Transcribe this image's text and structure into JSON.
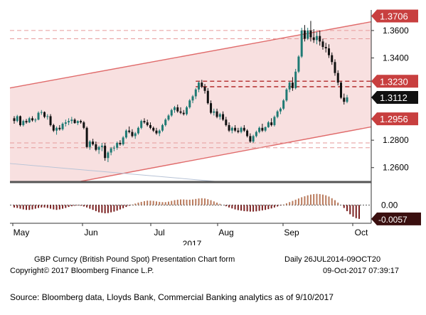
{
  "chart_data": {
    "type": "candlestick",
    "title": "GBP Curncy (British Pound Spot) Presentation Chart form",
    "period_text": "Daily 26JUL2014-09OCT20",
    "copyright": "Copyright© 2017 Bloomberg Finance L.P.",
    "timestamp": "09-Oct-2017 07:39:17",
    "year_label": "2017",
    "x_month_labels": [
      "May",
      "Jun",
      "Jul",
      "Aug",
      "Sep",
      "Oct"
    ],
    "y_ticks": [
      "1.3600",
      "1.3400",
      "1.2800",
      "1.2600"
    ],
    "ylim": [
      1.25,
      1.375
    ],
    "price_tags": [
      {
        "label": "1.3706",
        "value": 1.3706,
        "style": "red"
      },
      {
        "label": "1.3230",
        "value": 1.323,
        "style": "red"
      },
      {
        "label": "1.3112",
        "value": 1.3112,
        "style": "black"
      },
      {
        "label": "1.2956",
        "value": 1.2956,
        "style": "red"
      }
    ],
    "horizontal_lines": [
      1.36,
      1.354,
      1.323,
      1.319,
      1.278,
      1.2745
    ],
    "channel": {
      "upper": [
        [
          0,
          1.3185
        ],
        [
          138,
          1.3745
        ]
      ],
      "lower": [
        [
          22,
          1.25
        ],
        [
          138,
          1.298
        ]
      ]
    },
    "candles": [
      [
        1.296,
        1.2975,
        1.292,
        1.294
      ],
      [
        1.294,
        1.2985,
        1.293,
        1.2975
      ],
      [
        1.2975,
        1.298,
        1.29,
        1.291
      ],
      [
        1.291,
        1.295,
        1.29,
        1.294
      ],
      [
        1.294,
        1.2955,
        1.292,
        1.293
      ],
      [
        1.293,
        1.297,
        1.2925,
        1.296
      ],
      [
        1.296,
        1.2975,
        1.2935,
        1.2945
      ],
      [
        1.2945,
        1.296,
        1.293,
        1.295
      ],
      [
        1.295,
        1.301,
        1.2945,
        1.3
      ],
      [
        1.3,
        1.302,
        1.2985,
        1.3005
      ],
      [
        1.3005,
        1.301,
        1.296,
        1.297
      ],
      [
        1.297,
        1.299,
        1.295,
        1.2975
      ],
      [
        1.2975,
        1.299,
        1.29,
        1.291
      ],
      [
        1.291,
        1.292,
        1.286,
        1.287
      ],
      [
        1.287,
        1.29,
        1.284,
        1.289
      ],
      [
        1.289,
        1.291,
        1.287,
        1.288
      ],
      [
        1.288,
        1.293,
        1.287,
        1.292
      ],
      [
        1.292,
        1.295,
        1.29,
        1.293
      ],
      [
        1.293,
        1.296,
        1.291,
        1.294
      ],
      [
        1.294,
        1.297,
        1.292,
        1.295
      ],
      [
        1.295,
        1.296,
        1.292,
        1.2925
      ],
      [
        1.2925,
        1.2945,
        1.291,
        1.294
      ],
      [
        1.294,
        1.295,
        1.292,
        1.293
      ],
      [
        1.293,
        1.294,
        1.288,
        1.289
      ],
      [
        1.289,
        1.29,
        1.274,
        1.275
      ],
      [
        1.275,
        1.28,
        1.273,
        1.279
      ],
      [
        1.279,
        1.281,
        1.276,
        1.277
      ],
      [
        1.277,
        1.279,
        1.272,
        1.273
      ],
      [
        1.273,
        1.276,
        1.27,
        1.275
      ],
      [
        1.275,
        1.278,
        1.272,
        1.276
      ],
      [
        1.276,
        1.278,
        1.265,
        1.267
      ],
      [
        1.267,
        1.272,
        1.264,
        1.271
      ],
      [
        1.271,
        1.275,
        1.269,
        1.274
      ],
      [
        1.274,
        1.276,
        1.272,
        1.2745
      ],
      [
        1.2745,
        1.279,
        1.273,
        1.278
      ],
      [
        1.278,
        1.28,
        1.276,
        1.277
      ],
      [
        1.277,
        1.283,
        1.276,
        1.282
      ],
      [
        1.282,
        1.288,
        1.281,
        1.287
      ],
      [
        1.287,
        1.29,
        1.285,
        1.286
      ],
      [
        1.286,
        1.288,
        1.282,
        1.283
      ],
      [
        1.283,
        1.286,
        1.281,
        1.285
      ],
      [
        1.285,
        1.29,
        1.284,
        1.289
      ],
      [
        1.289,
        1.295,
        1.288,
        1.294
      ],
      [
        1.294,
        1.296,
        1.292,
        1.293
      ],
      [
        1.293,
        1.295,
        1.29,
        1.291
      ],
      [
        1.291,
        1.293,
        1.288,
        1.289
      ],
      [
        1.289,
        1.29,
        1.286,
        1.287
      ],
      [
        1.287,
        1.289,
        1.284,
        1.285
      ],
      [
        1.285,
        1.288,
        1.283,
        1.287
      ],
      [
        1.287,
        1.292,
        1.286,
        1.291
      ],
      [
        1.291,
        1.296,
        1.29,
        1.295
      ],
      [
        1.295,
        1.299,
        1.294,
        1.298
      ],
      [
        1.298,
        1.303,
        1.297,
        1.302
      ],
      [
        1.302,
        1.305,
        1.3,
        1.304
      ],
      [
        1.304,
        1.306,
        1.3,
        1.301
      ],
      [
        1.301,
        1.304,
        1.299,
        1.3
      ],
      [
        1.3,
        1.302,
        1.298,
        1.299
      ],
      [
        1.299,
        1.305,
        1.298,
        1.304
      ],
      [
        1.304,
        1.31,
        1.303,
        1.309
      ],
      [
        1.309,
        1.313,
        1.307,
        1.312
      ],
      [
        1.312,
        1.318,
        1.31,
        1.317
      ],
      [
        1.317,
        1.323,
        1.315,
        1.322
      ],
      [
        1.322,
        1.324,
        1.318,
        1.319
      ],
      [
        1.319,
        1.321,
        1.314,
        1.316
      ],
      [
        1.316,
        1.318,
        1.306,
        1.307
      ],
      [
        1.307,
        1.309,
        1.299,
        1.3
      ],
      [
        1.3,
        1.303,
        1.298,
        1.301
      ],
      [
        1.301,
        1.303,
        1.296,
        1.297
      ],
      [
        1.297,
        1.3,
        1.295,
        1.299
      ],
      [
        1.299,
        1.301,
        1.294,
        1.295
      ],
      [
        1.295,
        1.297,
        1.29,
        1.291
      ],
      [
        1.291,
        1.293,
        1.286,
        1.287
      ],
      [
        1.287,
        1.29,
        1.285,
        1.289
      ],
      [
        1.289,
        1.291,
        1.286,
        1.287
      ],
      [
        1.287,
        1.289,
        1.285,
        1.286
      ],
      [
        1.286,
        1.29,
        1.285,
        1.289
      ],
      [
        1.289,
        1.291,
        1.286,
        1.287
      ],
      [
        1.287,
        1.288,
        1.282,
        1.283
      ],
      [
        1.283,
        1.285,
        1.278,
        1.279
      ],
      [
        1.279,
        1.284,
        1.278,
        1.283
      ],
      [
        1.283,
        1.287,
        1.282,
        1.286
      ],
      [
        1.286,
        1.29,
        1.285,
        1.289
      ],
      [
        1.289,
        1.292,
        1.286,
        1.287
      ],
      [
        1.287,
        1.29,
        1.286,
        1.2895
      ],
      [
        1.2895,
        1.294,
        1.289,
        1.293
      ],
      [
        1.293,
        1.296,
        1.29,
        1.291
      ],
      [
        1.291,
        1.298,
        1.29,
        1.297
      ],
      [
        1.297,
        1.302,
        1.296,
        1.301
      ],
      [
        1.301,
        1.304,
        1.299,
        1.303
      ],
      [
        1.303,
        1.31,
        1.302,
        1.309
      ],
      [
        1.309,
        1.318,
        1.308,
        1.317
      ],
      [
        1.317,
        1.323,
        1.315,
        1.322
      ],
      [
        1.322,
        1.326,
        1.316,
        1.318
      ],
      [
        1.318,
        1.332,
        1.317,
        1.33
      ],
      [
        1.33,
        1.342,
        1.329,
        1.341
      ],
      [
        1.341,
        1.362,
        1.34,
        1.36
      ],
      [
        1.36,
        1.364,
        1.352,
        1.354
      ],
      [
        1.354,
        1.362,
        1.353,
        1.36
      ],
      [
        1.36,
        1.367,
        1.352,
        1.355
      ],
      [
        1.355,
        1.361,
        1.351,
        1.353
      ],
      [
        1.353,
        1.359,
        1.35,
        1.356
      ],
      [
        1.356,
        1.36,
        1.349,
        1.352
      ],
      [
        1.352,
        1.354,
        1.346,
        1.348
      ],
      [
        1.348,
        1.351,
        1.344,
        1.347
      ],
      [
        1.347,
        1.35,
        1.34,
        1.342
      ],
      [
        1.342,
        1.344,
        1.335,
        1.337
      ],
      [
        1.337,
        1.339,
        1.327,
        1.329
      ],
      [
        1.329,
        1.331,
        1.32,
        1.322
      ],
      [
        1.322,
        1.323,
        1.31,
        1.311
      ],
      [
        1.311,
        1.314,
        1.306,
        1.308
      ],
      [
        1.308,
        1.313,
        1.307,
        1.3112
      ]
    ],
    "oscillator": {
      "ticks": [
        "0.00",
        "-0.0057"
      ],
      "ylim": [
        -0.0075,
        0.008
      ],
      "values": [
        -0.001,
        -0.0012,
        -0.0015,
        -0.0018,
        -0.002,
        -0.002,
        -0.0018,
        -0.0015,
        -0.0012,
        -0.001,
        -0.001,
        -0.0012,
        -0.0015,
        -0.0018,
        -0.002,
        -0.0018,
        -0.0015,
        -0.0012,
        -0.0008,
        -0.0005,
        -0.0003,
        -0.0002,
        -0.0003,
        -0.0006,
        -0.001,
        -0.0015,
        -0.002,
        -0.0025,
        -0.003,
        -0.0032,
        -0.0034,
        -0.0033,
        -0.003,
        -0.0027,
        -0.0023,
        -0.0018,
        -0.0013,
        -0.0008,
        -0.0003,
        0.0002,
        0.0006,
        0.001,
        0.0013,
        0.0016,
        0.0018,
        0.0018,
        0.0017,
        0.0015,
        0.0013,
        0.0012,
        0.0012,
        0.0014,
        0.0017,
        0.002,
        0.0022,
        0.0023,
        0.0023,
        0.0022,
        0.0022,
        0.0023,
        0.0025,
        0.0027,
        0.0028,
        0.0027,
        0.0024,
        0.002,
        0.0015,
        0.001,
        0.0005,
        0.0,
        -0.0005,
        -0.001,
        -0.0014,
        -0.0018,
        -0.0021,
        -0.0023,
        -0.0025,
        -0.0026,
        -0.0027,
        -0.0027,
        -0.0026,
        -0.0024,
        -0.0022,
        -0.002,
        -0.0017,
        -0.0014,
        -0.001,
        -0.0006,
        -0.0002,
        0.0002,
        0.0007,
        0.0012,
        0.0017,
        0.0022,
        0.0027,
        0.0032,
        0.0036,
        0.004,
        0.0043,
        0.0045,
        0.0046,
        0.0045,
        0.0043,
        0.004,
        0.0035,
        0.0028,
        0.002,
        0.001,
        0.0,
        -0.0012,
        -0.0025,
        -0.0038,
        -0.0048,
        -0.0054,
        -0.0057
      ]
    }
  },
  "footer": {
    "title_line": "GBP Curncy (British Pound Spot) Presentation Chart form",
    "date_range": "Daily 26JUL2014-09OCT20",
    "copyright": "Copyright© 2017 Bloomberg Finance L.P.",
    "timestamp": "09-Oct-2017 07:39:17"
  },
  "source_note": "Source: Bloomberg data, Lloyds Bank, Commercial Banking analytics as of 9/10/2017",
  "colors": {
    "up": "#1f7a74",
    "down": "#111111",
    "channel_fill": "#f6d6d6",
    "channel_line": "#e06b6b",
    "tag_red": "#c83f3f",
    "osc_pos": "#b97a5c",
    "osc_neg": "#7a2020"
  }
}
